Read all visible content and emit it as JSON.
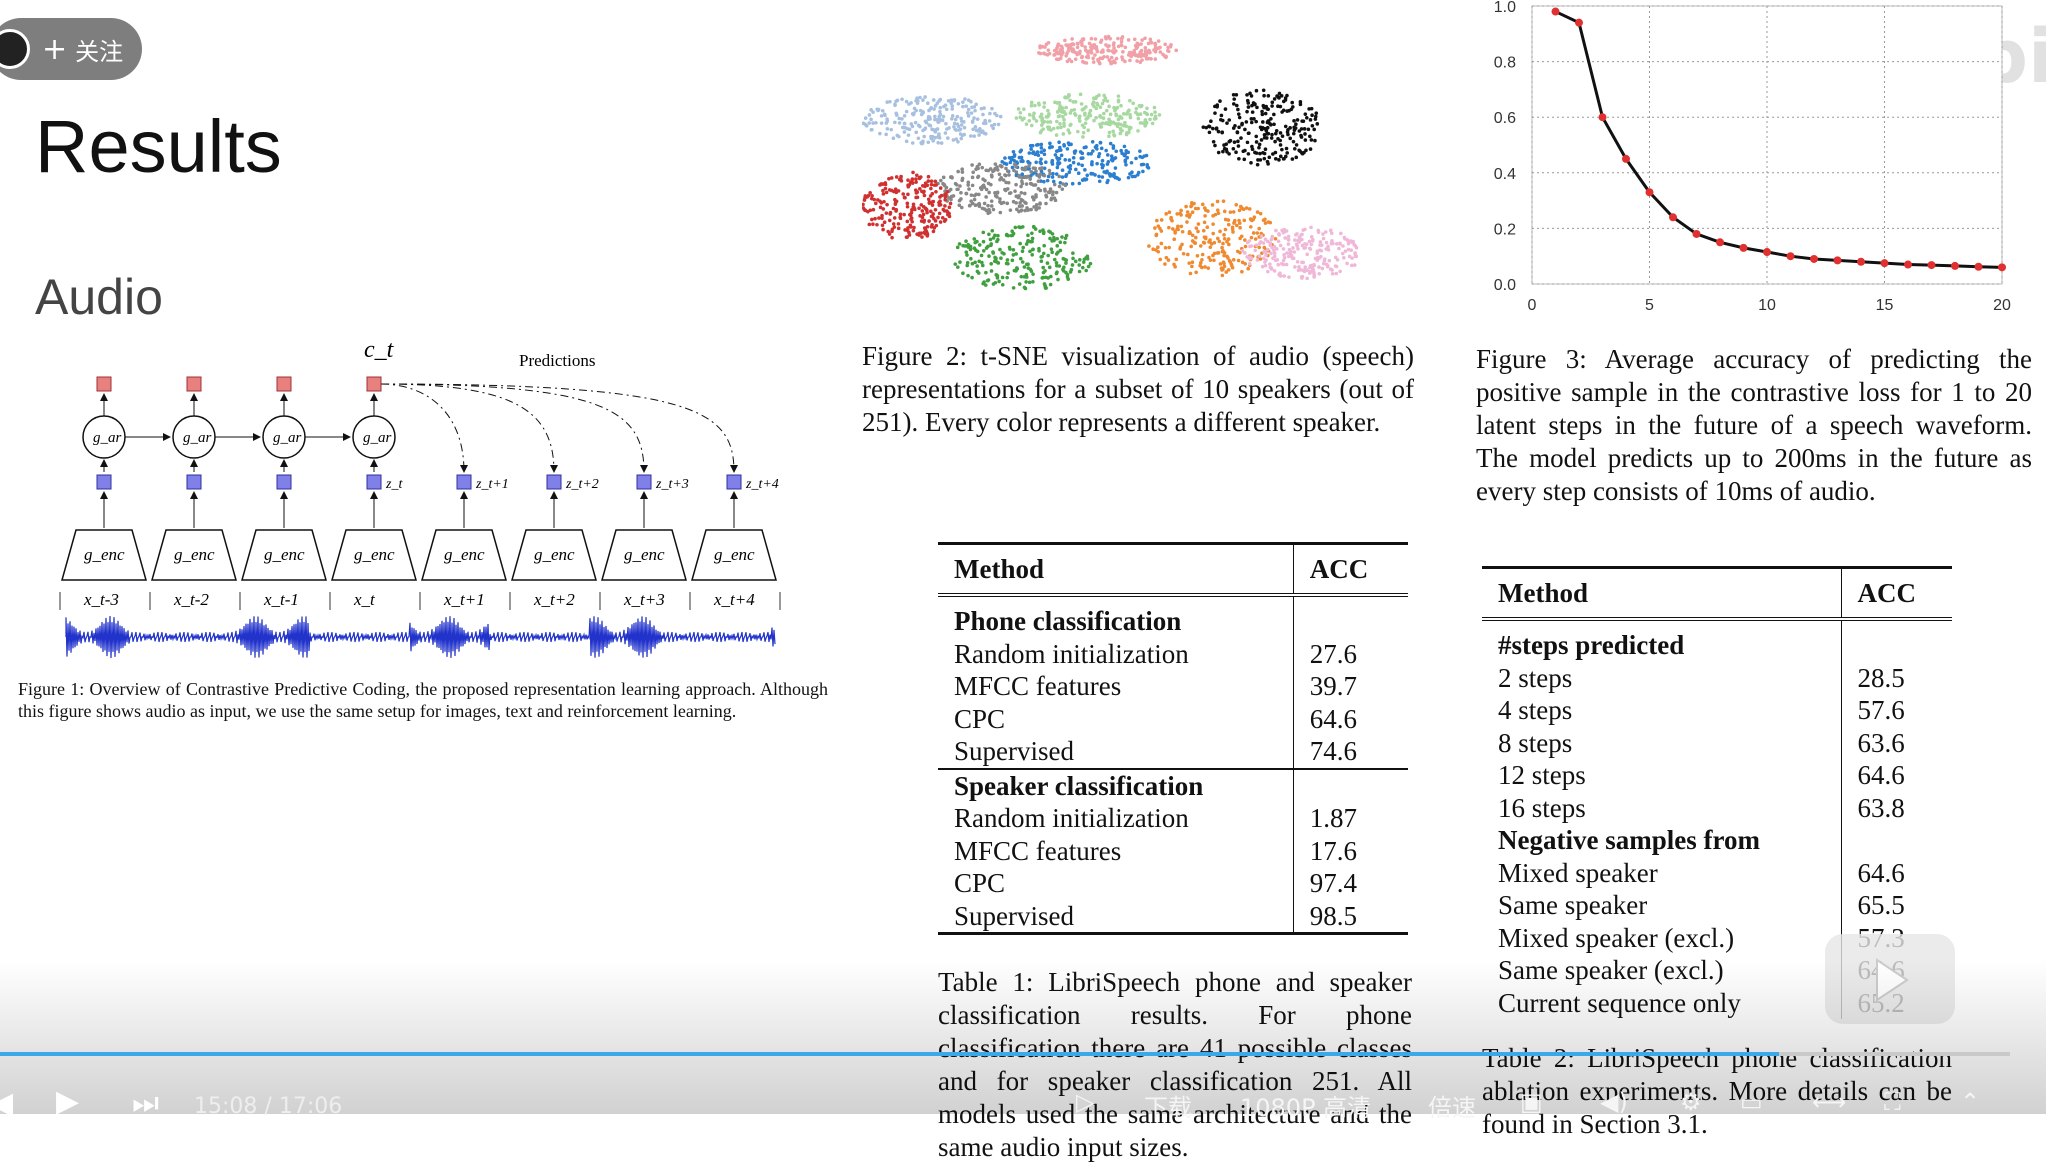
{
  "follow": {
    "plus": "+",
    "label": "关注"
  },
  "slide": {
    "title": "Results",
    "subtitle": "Audio"
  },
  "figure1": {
    "context_label": "c_t",
    "predictions_label": "Predictions",
    "ar_label": "g_ar",
    "enc_label": "g_enc",
    "z_labels": [
      "z_t",
      "z_t+1",
      "z_t+2",
      "z_t+3",
      "z_t+4"
    ],
    "x_labels": [
      "x_t-3",
      "x_t-2",
      "x_t-1",
      "x_t",
      "x_t+1",
      "x_t+2",
      "x_t+3",
      "x_t+4"
    ],
    "caption": "Figure 1: Overview of Contrastive Predictive Coding, the proposed representation learning approach. Although this figure shows audio as input, we use the same setup for images, text and reinforcement learning."
  },
  "figure2": {
    "caption": "Figure 2: t-SNE visualization of audio (speech) representations for a subset of 10 speakers (out of 251). Every color represents a different speaker.",
    "colors": [
      "#f0a0a6",
      "#a8c0e0",
      "#a6d8a0",
      "#111111",
      "#2c7fd0",
      "#888888",
      "#d03030",
      "#f08a30",
      "#40a040",
      "#f0b8d8"
    ]
  },
  "figure3": {
    "caption": "Figure 3: Average accuracy of predicting the positive sample in the contrastive loss for 1 to 20 latent steps in the future of a speech waveform. The model predicts up to 200ms in the future as every step consists of 10ms of audio.",
    "chart_data": {
      "type": "line",
      "x": [
        1,
        2,
        3,
        4,
        5,
        6,
        7,
        8,
        9,
        10,
        11,
        12,
        13,
        14,
        15,
        16,
        17,
        18,
        19,
        20
      ],
      "series": [
        {
          "values": [
            0.98,
            0.94,
            0.6,
            0.45,
            0.33,
            0.24,
            0.18,
            0.15,
            0.13,
            0.115,
            0.1,
            0.09,
            0.085,
            0.08,
            0.075,
            0.07,
            0.068,
            0.065,
            0.062,
            0.06
          ]
        }
      ],
      "xticks": [
        "0",
        "5",
        "10",
        "15",
        "20"
      ],
      "yticks": [
        "0.0",
        "0.2",
        "0.4",
        "0.6",
        "0.8",
        "1.0"
      ],
      "xlim": [
        0,
        20
      ],
      "ylim": [
        0,
        1.0
      ],
      "grid": true,
      "line_color": "#111111",
      "marker_color": "#e03030"
    }
  },
  "table1": {
    "header": [
      "Method",
      "ACC"
    ],
    "groups": [
      {
        "name": "Phone classification",
        "rows": [
          [
            "Random initialization",
            "27.6"
          ],
          [
            "MFCC features",
            "39.7"
          ],
          [
            "CPC",
            "64.6"
          ],
          [
            "Supervised",
            "74.6"
          ]
        ]
      },
      {
        "name": "Speaker classification",
        "rows": [
          [
            "Random initialization",
            "1.87"
          ],
          [
            "MFCC features",
            "17.6"
          ],
          [
            "CPC",
            "97.4"
          ],
          [
            "Supervised",
            "98.5"
          ]
        ]
      }
    ],
    "caption": "Table 1: LibriSpeech phone and speaker classification results. For phone classification there are 41 possible classes and for speaker classification 251. All models used the same architecture and the same audio input sizes."
  },
  "table2": {
    "header": [
      "Method",
      "ACC"
    ],
    "groups": [
      {
        "name": "#steps predicted",
        "rows": [
          [
            "2 steps",
            "28.5"
          ],
          [
            "4 steps",
            "57.6"
          ],
          [
            "8 steps",
            "63.6"
          ],
          [
            "12 steps",
            "64.6"
          ],
          [
            "16 steps",
            "63.8"
          ]
        ]
      },
      {
        "name": "Negative samples from",
        "rows": [
          [
            "Mixed speaker",
            "64.6"
          ],
          [
            "Same speaker",
            "65.5"
          ],
          [
            "Mixed speaker (excl.)",
            "57.3"
          ],
          [
            "Same speaker (excl.)",
            "64.6"
          ],
          [
            "Current sequence only",
            "65.2"
          ]
        ]
      }
    ],
    "caption": "Table 2: LibriSpeech phone classification ablation experiments. More details can be found in Section 3.1."
  },
  "player": {
    "current_time": "15:08",
    "separator": "/",
    "duration": "17:06",
    "progress_fraction": 0.885,
    "download": "下载",
    "quality": "1080P 高清",
    "speed": "倍速",
    "watermark": "bilibili",
    "accent": "#3aa9e8"
  }
}
